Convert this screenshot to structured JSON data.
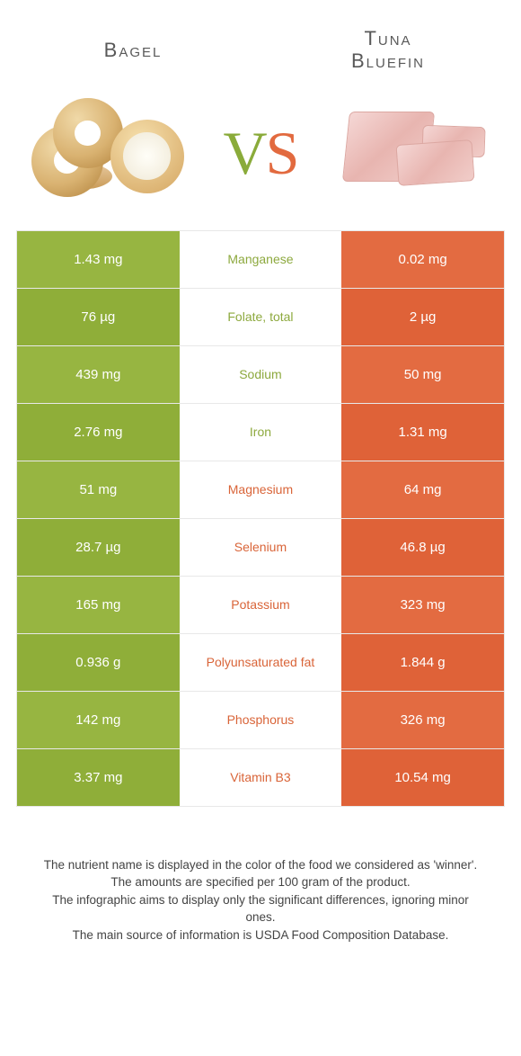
{
  "titles": {
    "left": "Bagel",
    "right": "Tuna\nBluefin"
  },
  "vs": {
    "v": "V",
    "s": "S"
  },
  "colors": {
    "green": "#97b541",
    "green_alt": "#8fae39",
    "orange": "#e36b41",
    "orange_alt": "#df6238",
    "mid_green_text": "#8da93e",
    "mid_orange_text": "#d96438"
  },
  "rows": [
    {
      "left": "1.43 mg",
      "mid": "Manganese",
      "right": "0.02 mg",
      "winner": "left"
    },
    {
      "left": "76 µg",
      "mid": "Folate, total",
      "right": "2 µg",
      "winner": "left"
    },
    {
      "left": "439 mg",
      "mid": "Sodium",
      "right": "50 mg",
      "winner": "left"
    },
    {
      "left": "2.76 mg",
      "mid": "Iron",
      "right": "1.31 mg",
      "winner": "left"
    },
    {
      "left": "51 mg",
      "mid": "Magnesium",
      "right": "64 mg",
      "winner": "right"
    },
    {
      "left": "28.7 µg",
      "mid": "Selenium",
      "right": "46.8 µg",
      "winner": "right"
    },
    {
      "left": "165 mg",
      "mid": "Potassium",
      "right": "323 mg",
      "winner": "right"
    },
    {
      "left": "0.936 g",
      "mid": "Polyunsaturated fat",
      "right": "1.844 g",
      "winner": "right"
    },
    {
      "left": "142 mg",
      "mid": "Phosphorus",
      "right": "326 mg",
      "winner": "right"
    },
    {
      "left": "3.37 mg",
      "mid": "Vitamin B3",
      "right": "10.54 mg",
      "winner": "right"
    }
  ],
  "footer": [
    "The nutrient name is displayed in the color of the food we considered as 'winner'.",
    "The amounts are specified per 100 gram of the product.",
    "The infographic aims to display only the significant differences, ignoring minor ones.",
    "The main source of information is USDA Food Composition Database."
  ]
}
